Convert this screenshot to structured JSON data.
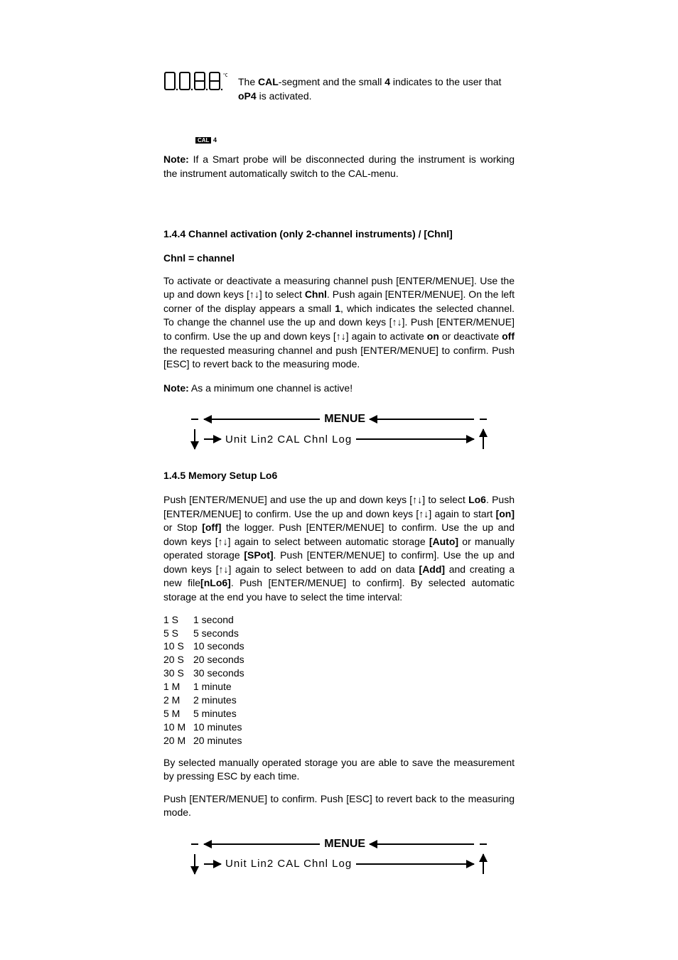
{
  "lcd": {
    "digits_text": "0.0.8.8.",
    "unit_suffix": "°C",
    "cal_badge": "CAL",
    "cal_num": "4",
    "side_text_1a": "The ",
    "side_text_1b": "CAL",
    "side_text_1c": "-segment and the small ",
    "side_text_1d": "4",
    "side_text_1e": " indicates to the user that ",
    "side_text_2a": "oP4",
    "side_text_2b": " is activated."
  },
  "note1": {
    "label": "Note:",
    "text": " If a Smart probe will be disconnected during the instrument is working the instrument automatically switch to the CAL-menu."
  },
  "section144": {
    "heading": "1.4.4 Channel activation (only 2-channel instruments) / [Chnl]",
    "sub": "Chnl = channel",
    "p1a": "To activate or deactivate a measuring channel push [ENTER/MENUE]. Use the up and down keys [",
    "p1b": "] to select ",
    "p1b2": "Chnl",
    "p1c": ". Push again [ENTER/MENUE]. On the left corner of the display appears a small ",
    "p1c2": "1",
    "p1d": ", which indicates the selected channel. To change the channel use the up and down keys [",
    "p1e": "]. Push [ENTER/MENUE] to confirm. Use the up and down keys [",
    "p1f": "] again to activate ",
    "p1f2": "on",
    "p1g": " or deactivate ",
    "p1g2": "off",
    "p1h": " the requested measuring channel and push [ENTER/MENUE] to confirm. Push [ESC] to revert back to the measuring mode.",
    "note_label": "Note:",
    "note_text": " As a minimum one channel is active!"
  },
  "menu": {
    "label": "MENUE",
    "items": "Unit  Lin2    CAL   Chnl   Log"
  },
  "section145": {
    "heading": "1.4.5 Memory Setup Lo6",
    "p1a": "Push [ENTER/MENUE] and use the up and down keys [",
    "p1b": "] to select ",
    "p1b2": "Lo6",
    "p1c": ". Push [ENTER/MENUE] to confirm. Use the up and down keys [",
    "p1d": "] again to start ",
    "p1d2": "[on]",
    "p1e": " or Stop ",
    "p1e2": "[off]",
    "p1f": " the logger. Push [ENTER/MENUE] to confirm. Use the up and down keys [",
    "p1g": "] again to select between automatic storage ",
    "p1g2": "[Auto]",
    "p1h": " or manually operated storage ",
    "p1h2": "[SPot]",
    "p1i": ". Push [ENTER/MENUE] to confirm]. Use the up and down keys [",
    "p1j": "] again to select between to add on data ",
    "p1j2": "[Add]",
    "p1k": " and creating a new file",
    "p1k2": "[nLo6]",
    "p1l": ". Push [ENTER/MENUE] to confirm]. By selected automatic storage at the end you have to select the time interval:",
    "intervals": [
      {
        "code": "1 S",
        "label": "1 second"
      },
      {
        "code": "5 S",
        "label": "5 seconds"
      },
      {
        "code": "10 S",
        "label": "10 seconds"
      },
      {
        "code": "20 S",
        "label": "20 seconds"
      },
      {
        "code": "30 S",
        "label": "30 seconds"
      },
      {
        "code": "1 M",
        "label": "1 minute"
      },
      {
        "code": "2 M",
        "label": "2 minutes"
      },
      {
        "code": "5 M",
        "label": "5 minutes"
      },
      {
        "code": "10 M",
        "label": "10 minutes"
      },
      {
        "code": "20 M",
        "label": "20 minutes"
      }
    ],
    "p2": "By selected manually operated storage you are able to save the measurement by pressing ESC by each time.",
    "p3": "Push [ENTER/MENUE] to confirm. Push [ESC] to revert back to the measuring mode."
  },
  "arrows": {
    "updown": "↑↓"
  },
  "colors": {
    "text": "#000000",
    "bg": "#ffffff"
  }
}
